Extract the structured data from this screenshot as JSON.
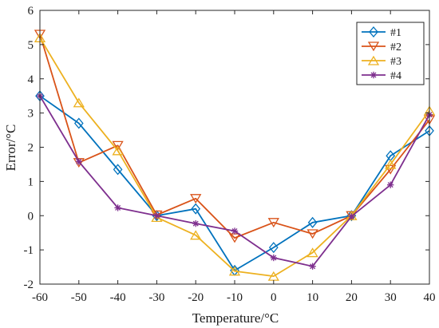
{
  "chart_data": {
    "type": "line",
    "title": "",
    "xlabel": "Temperature/°C",
    "ylabel": "Error/°C",
    "x": [
      -60,
      -50,
      -40,
      -30,
      -20,
      -10,
      0,
      10,
      20,
      30,
      40
    ],
    "xlim": [
      -60,
      40
    ],
    "ylim": [
      -2,
      6
    ],
    "x_ticks": [
      -60,
      -50,
      -40,
      -30,
      -20,
      -10,
      0,
      10,
      20,
      30,
      40
    ],
    "y_ticks": [
      -2,
      -1,
      0,
      1,
      2,
      3,
      4,
      5,
      6
    ],
    "grid": false,
    "legend_position": "top-right",
    "series": [
      {
        "name": "#1",
        "color": "#0072BD",
        "marker": "diamond",
        "values": [
          3.5,
          2.7,
          1.35,
          0.0,
          0.2,
          -1.6,
          -0.93,
          -0.2,
          0.0,
          1.75,
          2.48
        ]
      },
      {
        "name": "#2",
        "color": "#D95319",
        "marker": "triangle-down",
        "values": [
          5.3,
          1.55,
          2.05,
          0.02,
          0.5,
          -0.65,
          -0.2,
          -0.53,
          0.0,
          1.35,
          2.8
        ]
      },
      {
        "name": "#3",
        "color": "#EDB120",
        "marker": "triangle-up",
        "values": [
          5.2,
          3.3,
          1.9,
          -0.05,
          -0.57,
          -1.62,
          -1.77,
          -1.08,
          0.0,
          1.5,
          3.07
        ]
      },
      {
        "name": "#4",
        "color": "#7E2F8E",
        "marker": "asterisk",
        "values": [
          3.5,
          1.58,
          0.23,
          0.0,
          -0.23,
          -0.45,
          -1.23,
          -1.48,
          -0.02,
          0.9,
          2.95
        ]
      }
    ]
  }
}
